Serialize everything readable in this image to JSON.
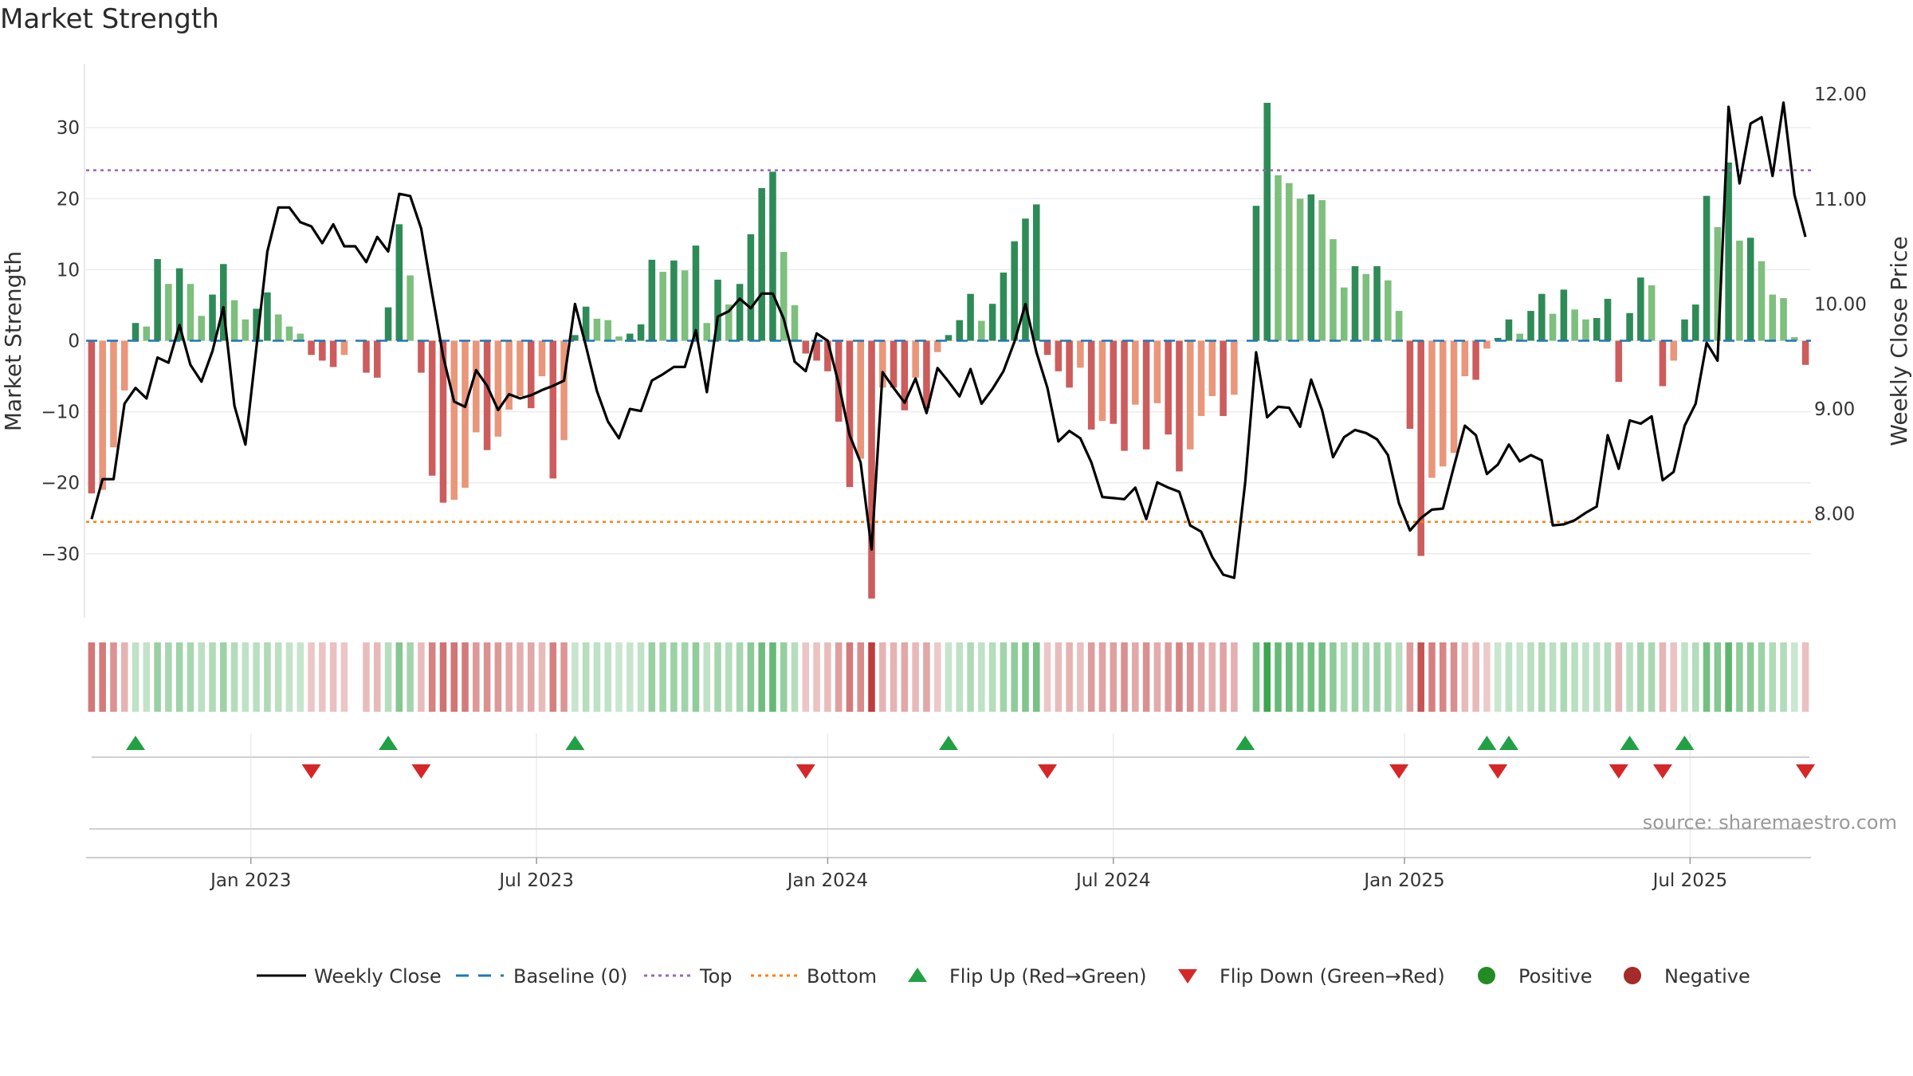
{
  "chart_data": {
    "type": "bar+line",
    "title": "Market Strength",
    "ylabel_left": "Market Strength",
    "ylabel_right": "Weekly Close Price",
    "source": "source: sharemaestro.com",
    "left_ylim": [
      -39,
      39
    ],
    "left_ticks": [
      30,
      20,
      10,
      0,
      -10,
      -20,
      -30
    ],
    "left_tick_labels": [
      "30",
      "20",
      "10",
      "0",
      "−10",
      "−20",
      "−30"
    ],
    "right_ylim": [
      7.01,
      12.29
    ],
    "right_ticks": [
      12.0,
      11.0,
      10.0,
      9.0,
      8.0
    ],
    "right_tick_labels": [
      "12.00",
      "11.00",
      "10.00",
      "9.00",
      "8.00"
    ],
    "top_line": 24,
    "bottom_line": -25.5,
    "x_tick_labels": [
      "Jan 2023",
      "Jul 2023",
      "Jan 2024",
      "Jul 2024",
      "Jan 2025",
      "Jul 2025"
    ],
    "x_tick_index": [
      15,
      41,
      67.5,
      93.5,
      120,
      146
    ],
    "strength": [
      -21.5,
      -21,
      -15,
      -7,
      2.5,
      2,
      11.5,
      8,
      10.2,
      8,
      3.5,
      6.5,
      10.8,
      5.7,
      3,
      4.5,
      6.8,
      3.7,
      2,
      1,
      -2,
      -2.8,
      -3.7,
      -2,
      0,
      -4.5,
      -5.2,
      4.7,
      16.4,
      9.2,
      -4.5,
      -19,
      -22.8,
      -22.4,
      -20.7,
      -12.9,
      -15.4,
      -13.5,
      -9.7,
      -7.8,
      -9.5,
      -5,
      -19.4,
      -14,
      0.8,
      4.8,
      3.1,
      2.9,
      0.6,
      1,
      2.3,
      11.4,
      9.7,
      11.3,
      9.9,
      13.4,
      2.5,
      8.6,
      5.1,
      8,
      15,
      21.5,
      23.8,
      12.5,
      5,
      -1.8,
      -2.8,
      -4.3,
      -11.4,
      -20.6,
      -16.6,
      -36.3,
      -6.6,
      -6.6,
      -9.8,
      -5.2,
      -9.5,
      -1.6,
      0.8,
      2.9,
      6.6,
      2.8,
      5.2,
      9.6,
      14,
      17.2,
      19.2,
      -2,
      -4.3,
      -6.6,
      -3.8,
      -12.5,
      -11.3,
      -11.7,
      -15.5,
      -9,
      -15.3,
      -8.8,
      -13.2,
      -18.4,
      -15.3,
      -10.6,
      -7.8,
      -10.6,
      -7.6,
      0,
      19,
      33.5,
      23.3,
      22.2,
      20,
      20.6,
      19.8,
      14.3,
      7.5,
      10.5,
      9.4,
      10.5,
      8.5,
      4.2,
      -12.4,
      -30.3,
      -19.3,
      -17.7,
      -15.8,
      -5,
      -5.5,
      -1.1,
      0.4,
      3,
      1,
      4.2,
      6.6,
      3.8,
      7.2,
      4.4,
      3,
      3.2,
      5.9,
      -5.8,
      3.9,
      8.9,
      7.8,
      -6.4,
      -2.8,
      3,
      5.1,
      20.4,
      16,
      25.1,
      14.1,
      14.5,
      11.2,
      6.5,
      6,
      0.5,
      -3.4
    ],
    "close": [
      7.95,
      8.33,
      8.33,
      9.05,
      9.2,
      9.1,
      9.49,
      9.44,
      9.8,
      9.42,
      9.26,
      9.55,
      9.97,
      9.03,
      8.66,
      9.58,
      10.5,
      10.92,
      10.92,
      10.78,
      10.74,
      10.58,
      10.76,
      10.55,
      10.55,
      10.4,
      10.64,
      10.5,
      11.05,
      11.03,
      10.72,
      10.1,
      9.5,
      9.07,
      9.02,
      9.37,
      9.22,
      8.99,
      9.14,
      9.1,
      9.13,
      9.18,
      9.22,
      9.27,
      10.0,
      9.6,
      9.17,
      8.88,
      8.72,
      9.0,
      8.98,
      9.27,
      9.33,
      9.4,
      9.4,
      9.75,
      9.16,
      9.88,
      9.93,
      10.05,
      9.96,
      10.1,
      10.1,
      9.86,
      9.45,
      9.36,
      9.72,
      9.65,
      9.24,
      8.75,
      8.49,
      7.66,
      9.35,
      9.2,
      9.06,
      9.29,
      8.96,
      9.39,
      9.26,
      9.12,
      9.38,
      9.05,
      9.19,
      9.36,
      9.64,
      10.0,
      9.54,
      9.2,
      8.69,
      8.79,
      8.72,
      8.49,
      8.16,
      8.15,
      8.14,
      8.25,
      7.95,
      8.3,
      8.25,
      8.21,
      7.89,
      7.83,
      7.59,
      7.42,
      7.39,
      8.3,
      9.54,
      8.92,
      9.02,
      9.01,
      8.83,
      9.28,
      8.99,
      8.54,
      8.73,
      8.8,
      8.77,
      8.71,
      8.56,
      8.1,
      7.84,
      7.96,
      8.04,
      8.05,
      8.45,
      8.84,
      8.75,
      8.38,
      8.47,
      8.66,
      8.5,
      8.56,
      8.51,
      7.89,
      7.9,
      7.94,
      8.01,
      8.07,
      8.75,
      8.43,
      8.89,
      8.86,
      8.93,
      8.32,
      8.4,
      8.84,
      9.05,
      9.63,
      9.46,
      11.88,
      11.15,
      11.72,
      11.78,
      11.22,
      11.92,
      11.04,
      10.64
    ],
    "flip_up": [
      4,
      27,
      44,
      78,
      105,
      127,
      129,
      140,
      145
    ],
    "flip_down": [
      20,
      30,
      65,
      87,
      119,
      128,
      139,
      143,
      156
    ],
    "legend": [
      "Weekly Close",
      "Baseline (0)",
      "Top",
      "Bottom",
      "Flip Up (Red→Green)",
      "Flip Down (Green→Red)",
      "Positive",
      "Negative"
    ],
    "colors": {
      "pos_strong": "#2e8b57",
      "pos_weak": "#7dbf7d",
      "neg_strong": "#cd5c5c",
      "neg_weak": "#e9967a",
      "close": "#000000",
      "baseline": "#1f77b4",
      "top": "#9467bd",
      "bottom": "#ff7f0e",
      "flip_up": "#22a045",
      "flip_down": "#d62728",
      "positive_dot": "#228b22",
      "negative_dot": "#a52a2a"
    }
  }
}
